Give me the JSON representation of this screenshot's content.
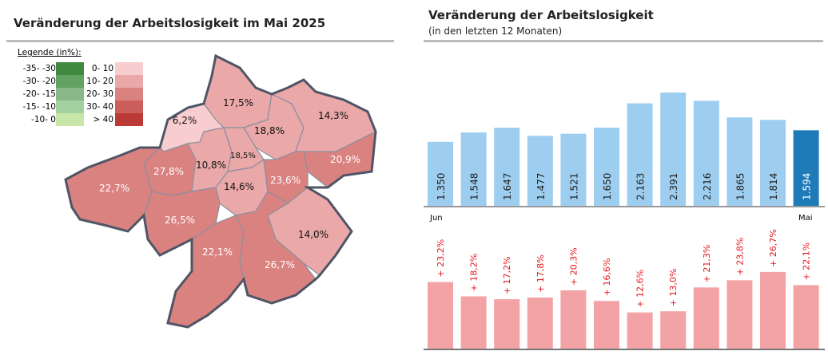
{
  "left": {
    "title": "Veränderung der Arbeitslosigkeit im Mai 2025",
    "legend": {
      "title": "Legende (in%):",
      "green": [
        {
          "label": "-35- -30",
          "color": "#3f8a3f"
        },
        {
          "label": "-30- -20",
          "color": "#62a262"
        },
        {
          "label": "-20- -15",
          "color": "#8bb88b"
        },
        {
          "label": "-15- -10",
          "color": "#a3d1a0"
        },
        {
          "label": "-10- 0",
          "color": "#c8e6a8"
        }
      ],
      "red": [
        {
          "label": "0- 10",
          "color": "#f8cdcf"
        },
        {
          "label": "10- 20",
          "color": "#eba8a8"
        },
        {
          "label": "20- 30",
          "color": "#da8280"
        },
        {
          "label": "30- 40",
          "color": "#cc5f5c"
        },
        {
          "label": "> 40",
          "color": "#bb3a35"
        }
      ]
    },
    "districts": [
      "6,2%",
      "17,5%",
      "18,8%",
      "14,3%",
      "20,9%",
      "27,8%",
      "10,8%",
      "18,5%",
      "14,6%",
      "23,6%",
      "22,7%",
      "26,5%",
      "14,0%",
      "22,1%",
      "26,7%"
    ]
  },
  "chart_data": [
    {
      "type": "bar",
      "title": "Veränderung der Arbeitslosigkeit",
      "subtitle": "(in den letzten 12 Monaten)",
      "x_start_label": "Jun",
      "x_end_label": "Mai",
      "values": [
        1350,
        1548,
        1647,
        1477,
        1521,
        1650,
        2163,
        2391,
        2216,
        1865,
        1814,
        1594
      ],
      "labels": [
        "1.350",
        "1.548",
        "1.647",
        "1.477",
        "1.521",
        "1.650",
        "2.163",
        "2.391",
        "2.216",
        "1.865",
        "1.814",
        "1.594"
      ],
      "colors": {
        "normal": "#9dcdef",
        "current": "#1f7ab8"
      }
    },
    {
      "type": "bar",
      "values": [
        23.2,
        18.2,
        17.2,
        17.8,
        20.3,
        16.6,
        12.6,
        13.0,
        21.3,
        23.8,
        26.7,
        22.1
      ],
      "labels": [
        "+ 23,2%",
        "+ 18,2%",
        "+ 17,2%",
        "+ 17,8%",
        "+ 20,3%",
        "+ 16,6%",
        "+ 12,6%",
        "+ 13,0%",
        "+ 21,3%",
        "+ 23,8%",
        "+ 26,7%",
        "+ 22,1%"
      ],
      "colors": {
        "bar": "#f3a3a5",
        "label": "#e8141c"
      }
    }
  ]
}
